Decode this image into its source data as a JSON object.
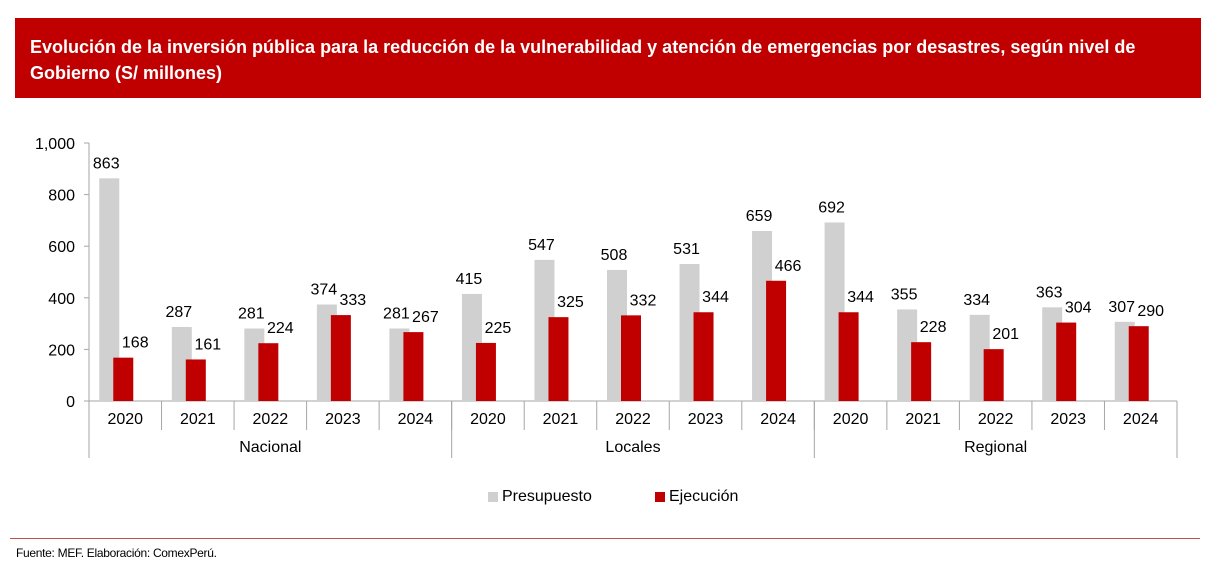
{
  "header": {
    "title": "Evolución de la inversión pública para la reducción de la vulnerabilidad y atención de emergencias por desastres, según nivel de Gobierno (S/ millones)"
  },
  "footer": {
    "source": "Fuente: MEF. Elaboración: ComexPerú."
  },
  "colors": {
    "title_bg": "#c00000",
    "presupuesto": "#d0d0d0",
    "ejecucion": "#c00000"
  },
  "chart_data": {
    "type": "bar",
    "title": "Evolución de la inversión pública para la reducción de la vulnerabilidad y atención de emergencias por desastres, según nivel de Gobierno (S/ millones)",
    "xlabel": "",
    "ylabel": "",
    "ylim": [
      0,
      1000
    ],
    "yticks": [
      0,
      200,
      400,
      600,
      800,
      1000
    ],
    "ytick_labels": [
      "0",
      "200",
      "400",
      "600",
      "800",
      "1,000"
    ],
    "grid": false,
    "legend_position": "bottom",
    "groups": [
      {
        "name": "Nacional",
        "categories": [
          "2020",
          "2021",
          "2022",
          "2023",
          "2024"
        ]
      },
      {
        "name": "Locales",
        "categories": [
          "2020",
          "2021",
          "2022",
          "2023",
          "2024"
        ]
      },
      {
        "name": "Regional",
        "categories": [
          "2020",
          "2021",
          "2022",
          "2023",
          "2024"
        ]
      }
    ],
    "categories": [
      "2020",
      "2021",
      "2022",
      "2023",
      "2024",
      "2020",
      "2021",
      "2022",
      "2023",
      "2024",
      "2020",
      "2021",
      "2022",
      "2023",
      "2024"
    ],
    "series": [
      {
        "name": "Presupuesto",
        "color": "#d0d0d0",
        "values": [
          863,
          287,
          281,
          374,
          281,
          415,
          547,
          508,
          531,
          659,
          692,
          355,
          334,
          363,
          307
        ]
      },
      {
        "name": "Ejecución",
        "color": "#c00000",
        "values": [
          168,
          161,
          224,
          333,
          267,
          225,
          325,
          332,
          344,
          466,
          344,
          228,
          201,
          304,
          290
        ]
      }
    ]
  }
}
